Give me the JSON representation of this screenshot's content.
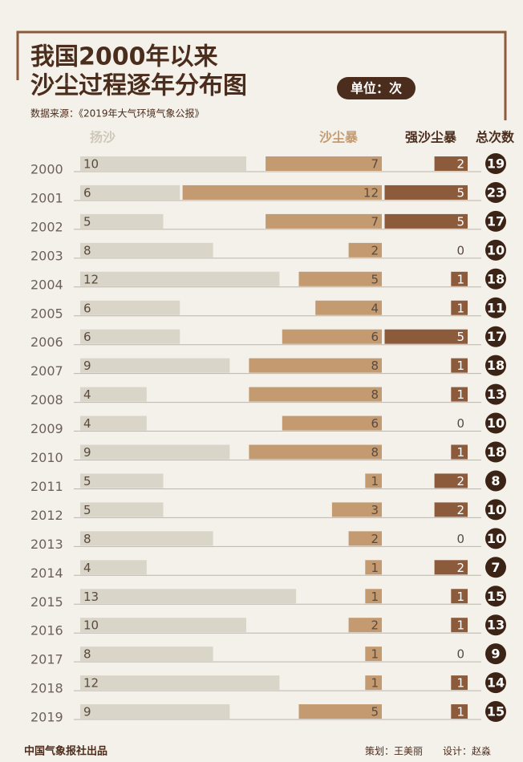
{
  "chart_data": {
    "type": "bar",
    "title_lines": [
      "我国2000年以来",
      "沙尘过程逐年分布图"
    ],
    "unit": "单位：次",
    "source": "数据来源：《2019年大气环境气象公报》",
    "categories": [
      "2000",
      "2001",
      "2002",
      "2003",
      "2004",
      "2005",
      "2006",
      "2007",
      "2008",
      "2009",
      "2010",
      "2011",
      "2012",
      "2013",
      "2014",
      "2015",
      "2016",
      "2017",
      "2018",
      "2019"
    ],
    "series": [
      {
        "name": "扬沙",
        "color": "#dad5c9",
        "values": [
          10,
          6,
          5,
          8,
          12,
          6,
          6,
          9,
          4,
          4,
          9,
          5,
          5,
          8,
          4,
          13,
          10,
          8,
          12,
          9
        ]
      },
      {
        "name": "沙尘暴",
        "color": "#c49b70",
        "values": [
          7,
          12,
          7,
          2,
          5,
          4,
          6,
          8,
          8,
          6,
          8,
          1,
          3,
          2,
          1,
          1,
          2,
          1,
          1,
          5
        ]
      },
      {
        "name": "强沙尘暴",
        "color": "#8c5b3b",
        "values": [
          2,
          5,
          5,
          0,
          1,
          1,
          5,
          1,
          1,
          0,
          1,
          2,
          2,
          0,
          2,
          1,
          1,
          0,
          1,
          1
        ]
      }
    ],
    "total_name": "总次数",
    "totals": [
      19,
      23,
      17,
      10,
      18,
      11,
      17,
      18,
      13,
      10,
      18,
      8,
      10,
      10,
      7,
      15,
      13,
      9,
      14,
      15
    ],
    "publisher": "中国气象报社出品",
    "planner": "策划：王美丽",
    "designer": "设计：赵淼"
  }
}
